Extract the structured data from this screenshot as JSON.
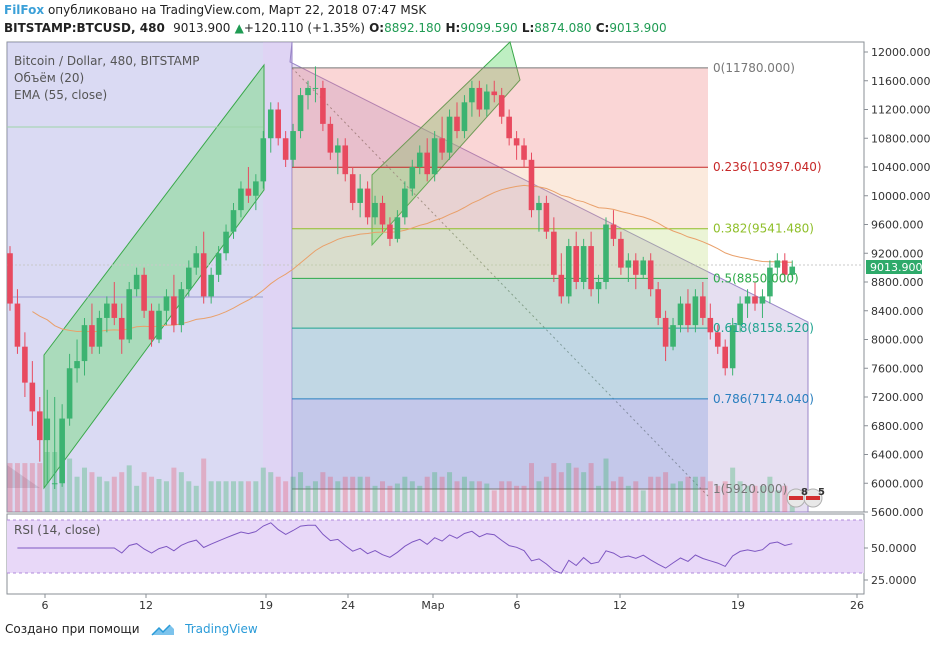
{
  "header": {
    "brand": "FilFox",
    "published": "опубликовано на TradingView.com, Март 22, 2018 07:47 MSK",
    "symbol": "BITSTAMP:BTCUSD, 480",
    "last": "9013.900",
    "change": "+120.110 (+1.35%)",
    "o_label": "O:",
    "o": "8892.180",
    "h_label": "H:",
    "h": "9099.590",
    "l_label": "L:",
    "l": "8874.080",
    "c_label": "C:",
    "c": "9013.900"
  },
  "legend": {
    "title": "Bitcoin / Dollar, 480, BITSTAMP",
    "volume": "Объём (20)",
    "ema": "EMA (55, close)",
    "rsi": "RSI (14, close)"
  },
  "price_tag": "9013.900",
  "events": {
    "flag1": "8",
    "flag2": "5"
  },
  "footer": {
    "created": "Создано при помощи",
    "tradingview": "TradingView"
  },
  "colors": {
    "up": "#26a69a",
    "down": "#ef5350",
    "up_body": "#3cb371",
    "down_body": "#e84a5f",
    "rsi_band": "#e8d8f8",
    "brand": "#3ba0d8"
  },
  "chart_data": {
    "type": "candlestick",
    "price_axis": {
      "ticks": [
        "12000.000",
        "11600.000",
        "11200.000",
        "10800.000",
        "10400.000",
        "10000.000",
        "9600.000",
        "9200.000",
        "8800.000",
        "8400.000",
        "8000.000",
        "7600.000",
        "7200.000",
        "6800.000",
        "6400.000",
        "6000.000",
        "5600.000"
      ]
    },
    "rsi_axis": {
      "ticks": [
        "50.0000",
        "25.0000"
      ]
    },
    "time_axis": {
      "ticks": [
        "6",
        "12",
        "19",
        "24",
        "Мар",
        "6",
        "12",
        "19",
        "26"
      ]
    },
    "fibonacci": [
      {
        "level": "0",
        "value": "11780.000",
        "color": "#777777"
      },
      {
        "level": "0.236",
        "value": "10397.040",
        "color": "#c62828"
      },
      {
        "level": "0.382",
        "value": "9541.480",
        "color": "#8fbf2a"
      },
      {
        "level": "0.5",
        "value": "8850.000",
        "color": "#2eaa4a"
      },
      {
        "level": "0.618",
        "value": "8158.520",
        "color": "#1fa38f"
      },
      {
        "level": "0.786",
        "value": "7174.040",
        "color": "#2a7fbf"
      },
      {
        "level": "1",
        "value": "5920.000",
        "color": "#777777"
      }
    ],
    "candles": [
      [
        9200,
        9300,
        8400,
        8500
      ],
      [
        8500,
        8700,
        7800,
        7900
      ],
      [
        7900,
        8100,
        7200,
        7400
      ],
      [
        7400,
        7700,
        6800,
        7000
      ],
      [
        7000,
        7200,
        6300,
        6600
      ],
      [
        6600,
        7300,
        6000,
        6900
      ],
      [
        6000,
        7200,
        5920,
        6000
      ],
      [
        6000,
        7100,
        5950,
        6900
      ],
      [
        6900,
        7800,
        6800,
        7600
      ],
      [
        7600,
        8000,
        7400,
        7700
      ],
      [
        7700,
        8300,
        7500,
        8200
      ],
      [
        8200,
        8500,
        7800,
        7900
      ],
      [
        7900,
        8400,
        7800,
        8300
      ],
      [
        8300,
        8600,
        8100,
        8500
      ],
      [
        8500,
        8800,
        8200,
        8300
      ],
      [
        8300,
        8500,
        7800,
        8000
      ],
      [
        8000,
        8800,
        7950,
        8700
      ],
      [
        8700,
        9000,
        8600,
        8900
      ],
      [
        8900,
        9000,
        8300,
        8400
      ],
      [
        8400,
        8500,
        7900,
        8000
      ],
      [
        8000,
        8500,
        7950,
        8400
      ],
      [
        8400,
        8700,
        8200,
        8600
      ],
      [
        8600,
        8900,
        8100,
        8200
      ],
      [
        8200,
        8800,
        8100,
        8700
      ],
      [
        8700,
        9100,
        8600,
        9000
      ],
      [
        9000,
        9300,
        8900,
        9200
      ],
      [
        9200,
        9500,
        8500,
        8600
      ],
      [
        8600,
        9000,
        8500,
        8900
      ],
      [
        8900,
        9300,
        8800,
        9200
      ],
      [
        9200,
        9600,
        9100,
        9500
      ],
      [
        9500,
        9900,
        9400,
        9800
      ],
      [
        9800,
        10200,
        9700,
        10100
      ],
      [
        10100,
        10400,
        9900,
        10000
      ],
      [
        10000,
        10300,
        9800,
        10200
      ],
      [
        10200,
        10900,
        10100,
        10800
      ],
      [
        10800,
        11300,
        10600,
        11200
      ],
      [
        11200,
        11300,
        10700,
        10800
      ],
      [
        10800,
        10900,
        10400,
        10500
      ],
      [
        10500,
        11000,
        10400,
        10900
      ],
      [
        10900,
        11500,
        10800,
        11400
      ],
      [
        11400,
        11600,
        11200,
        11500
      ],
      [
        11500,
        11800,
        11300,
        11500
      ],
      [
        11500,
        11600,
        10900,
        11000
      ],
      [
        11000,
        11100,
        10500,
        10600
      ],
      [
        10600,
        10800,
        10300,
        10700
      ],
      [
        10700,
        10800,
        10200,
        10300
      ],
      [
        10300,
        10400,
        9800,
        9900
      ],
      [
        9900,
        10300,
        9700,
        10100
      ],
      [
        10100,
        10200,
        9600,
        9700
      ],
      [
        9700,
        10000,
        9600,
        9900
      ],
      [
        9900,
        10000,
        9500,
        9600
      ],
      [
        9600,
        9700,
        9300,
        9400
      ],
      [
        9400,
        9800,
        9350,
        9700
      ],
      [
        9700,
        10200,
        9600,
        10100
      ],
      [
        10100,
        10500,
        10000,
        10400
      ],
      [
        10400,
        10700,
        10300,
        10600
      ],
      [
        10600,
        10800,
        10200,
        10300
      ],
      [
        10300,
        10900,
        10200,
        10800
      ],
      [
        10800,
        11100,
        10500,
        10600
      ],
      [
        10600,
        11200,
        10500,
        11100
      ],
      [
        11100,
        11300,
        10800,
        10900
      ],
      [
        10900,
        11400,
        10800,
        11300
      ],
      [
        11300,
        11600,
        11100,
        11500
      ],
      [
        11500,
        11600,
        11100,
        11200
      ],
      [
        11200,
        11550,
        11100,
        11450
      ],
      [
        11450,
        11600,
        11300,
        11400
      ],
      [
        11400,
        11500,
        11000,
        11100
      ],
      [
        11100,
        11200,
        10700,
        10800
      ],
      [
        10800,
        10900,
        10500,
        10700
      ],
      [
        10700,
        10800,
        10400,
        10500
      ],
      [
        10500,
        10600,
        9700,
        9800
      ],
      [
        9800,
        10000,
        9500,
        9900
      ],
      [
        9900,
        10000,
        9400,
        9500
      ],
      [
        9500,
        9700,
        8800,
        8900
      ],
      [
        8900,
        9200,
        8500,
        8600
      ],
      [
        8600,
        9400,
        8500,
        9300
      ],
      [
        9300,
        9500,
        8700,
        8800
      ],
      [
        8800,
        9400,
        8700,
        9300
      ],
      [
        9300,
        9500,
        8600,
        8700
      ],
      [
        8700,
        8900,
        8500,
        8800
      ],
      [
        8800,
        9700,
        8700,
        9600
      ],
      [
        9600,
        9800,
        9300,
        9400
      ],
      [
        9400,
        9500,
        8900,
        9000
      ],
      [
        9000,
        9200,
        8800,
        9100
      ],
      [
        9100,
        9200,
        8700,
        8900
      ],
      [
        8900,
        9150,
        8850,
        9100
      ],
      [
        9100,
        9200,
        8600,
        8700
      ],
      [
        8700,
        8800,
        8200,
        8300
      ],
      [
        8300,
        8400,
        7700,
        7900
      ],
      [
        7900,
        8300,
        7850,
        8200
      ],
      [
        8200,
        8600,
        8100,
        8500
      ],
      [
        8500,
        8700,
        8100,
        8200
      ],
      [
        8200,
        8700,
        8100,
        8600
      ],
      [
        8600,
        8800,
        8200,
        8300
      ],
      [
        8300,
        8500,
        8000,
        8100
      ],
      [
        8100,
        8200,
        7800,
        7900
      ],
      [
        7900,
        8000,
        7500,
        7600
      ],
      [
        7600,
        8300,
        7500,
        8200
      ],
      [
        8200,
        8600,
        8100,
        8500
      ],
      [
        8500,
        8700,
        8300,
        8600
      ],
      [
        8600,
        8800,
        8400,
        8500
      ],
      [
        8500,
        8700,
        8300,
        8600
      ],
      [
        8600,
        9100,
        8500,
        9000
      ],
      [
        9000,
        9200,
        8900,
        9100
      ],
      [
        9100,
        9200,
        8800,
        8900
      ],
      [
        8900,
        9100,
        8850,
        9014
      ]
    ]
  }
}
